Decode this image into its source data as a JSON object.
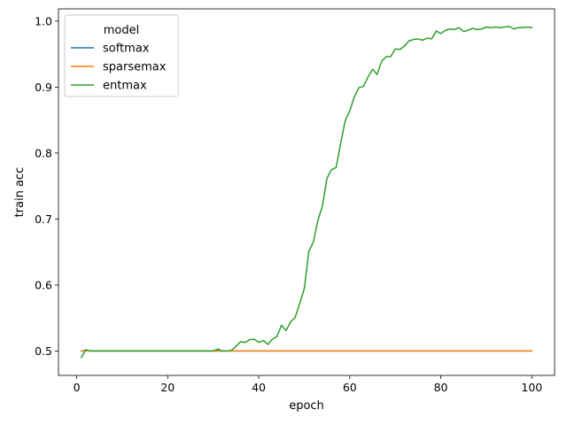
{
  "chart_data": {
    "type": "line",
    "xlabel": "epoch",
    "ylabel": "train acc",
    "xlim": [
      -4,
      105
    ],
    "ylim": [
      0.463,
      1.0185
    ],
    "xticks": [
      0,
      20,
      40,
      60,
      80,
      100
    ],
    "yticks": [
      0.5,
      0.6,
      0.7,
      0.8,
      0.9,
      1.0
    ],
    "xtick_labels": [
      "0",
      "20",
      "40",
      "60",
      "80",
      "100"
    ],
    "ytick_labels": [
      "0.5",
      "0.6",
      "0.7",
      "0.8",
      "0.9",
      "1.0"
    ],
    "grid": false,
    "legend": {
      "title": "model",
      "placement": "top-left",
      "entries": [
        "softmax",
        "sparsemax",
        "entmax"
      ]
    },
    "series": [
      {
        "name": "softmax",
        "color": "#1f77b4",
        "x": [
          1,
          2,
          3,
          5,
          10,
          20,
          30,
          40,
          50,
          60,
          70,
          80,
          90,
          100
        ],
        "y": [
          0.5,
          0.501,
          0.5,
          0.5,
          0.5,
          0.5,
          0.5,
          0.5,
          0.5,
          0.5,
          0.5,
          0.5,
          0.5,
          0.5
        ]
      },
      {
        "name": "sparsemax",
        "color": "#ff7f0e",
        "x": [
          1,
          2,
          3,
          5,
          10,
          20,
          30,
          40,
          50,
          60,
          70,
          80,
          90,
          100
        ],
        "y": [
          0.5,
          0.5,
          0.5,
          0.5,
          0.5,
          0.5,
          0.5,
          0.5,
          0.5,
          0.5,
          0.5,
          0.5,
          0.5,
          0.5
        ]
      },
      {
        "name": "entmax",
        "color": "#2ca02c",
        "x": [
          1,
          2,
          3,
          4,
          5,
          6,
          7,
          8,
          9,
          10,
          11,
          12,
          13,
          14,
          15,
          16,
          17,
          18,
          19,
          20,
          21,
          22,
          23,
          24,
          25,
          26,
          27,
          28,
          29,
          30,
          31,
          32,
          33,
          34,
          35,
          36,
          37,
          38,
          39,
          40,
          41,
          42,
          43,
          44,
          45,
          46,
          47,
          48,
          49,
          50,
          51,
          52,
          53,
          54,
          55,
          56,
          57,
          58,
          59,
          60,
          61,
          62,
          63,
          64,
          65,
          66,
          67,
          68,
          69,
          70,
          71,
          72,
          73,
          74,
          75,
          76,
          77,
          78,
          79,
          80,
          81,
          82,
          83,
          84,
          85,
          86,
          87,
          88,
          89,
          90,
          91,
          92,
          93,
          94,
          95,
          96,
          97,
          98,
          99,
          100
        ],
        "y": [
          0.49,
          0.502,
          0.5,
          0.5,
          0.5,
          0.5,
          0.5,
          0.5,
          0.5,
          0.5,
          0.5,
          0.5,
          0.5,
          0.5,
          0.5,
          0.5,
          0.5,
          0.5,
          0.5,
          0.5,
          0.5,
          0.5,
          0.5,
          0.5,
          0.5,
          0.5,
          0.5,
          0.5,
          0.5,
          0.5,
          0.503,
          0.5,
          0.5,
          0.501,
          0.507,
          0.514,
          0.513,
          0.517,
          0.518,
          0.513,
          0.516,
          0.51,
          0.518,
          0.522,
          0.539,
          0.531,
          0.544,
          0.551,
          0.572,
          0.594,
          0.651,
          0.665,
          0.698,
          0.72,
          0.762,
          0.775,
          0.778,
          0.815,
          0.849,
          0.864,
          0.885,
          0.899,
          0.901,
          0.915,
          0.927,
          0.919,
          0.939,
          0.946,
          0.946,
          0.958,
          0.957,
          0.962,
          0.97,
          0.972,
          0.973,
          0.971,
          0.974,
          0.973,
          0.985,
          0.981,
          0.986,
          0.988,
          0.987,
          0.99,
          0.984,
          0.986,
          0.989,
          0.987,
          0.988,
          0.991,
          0.99,
          0.991,
          0.99,
          0.991,
          0.992,
          0.988,
          0.99,
          0.99,
          0.991,
          0.99
        ]
      }
    ]
  }
}
